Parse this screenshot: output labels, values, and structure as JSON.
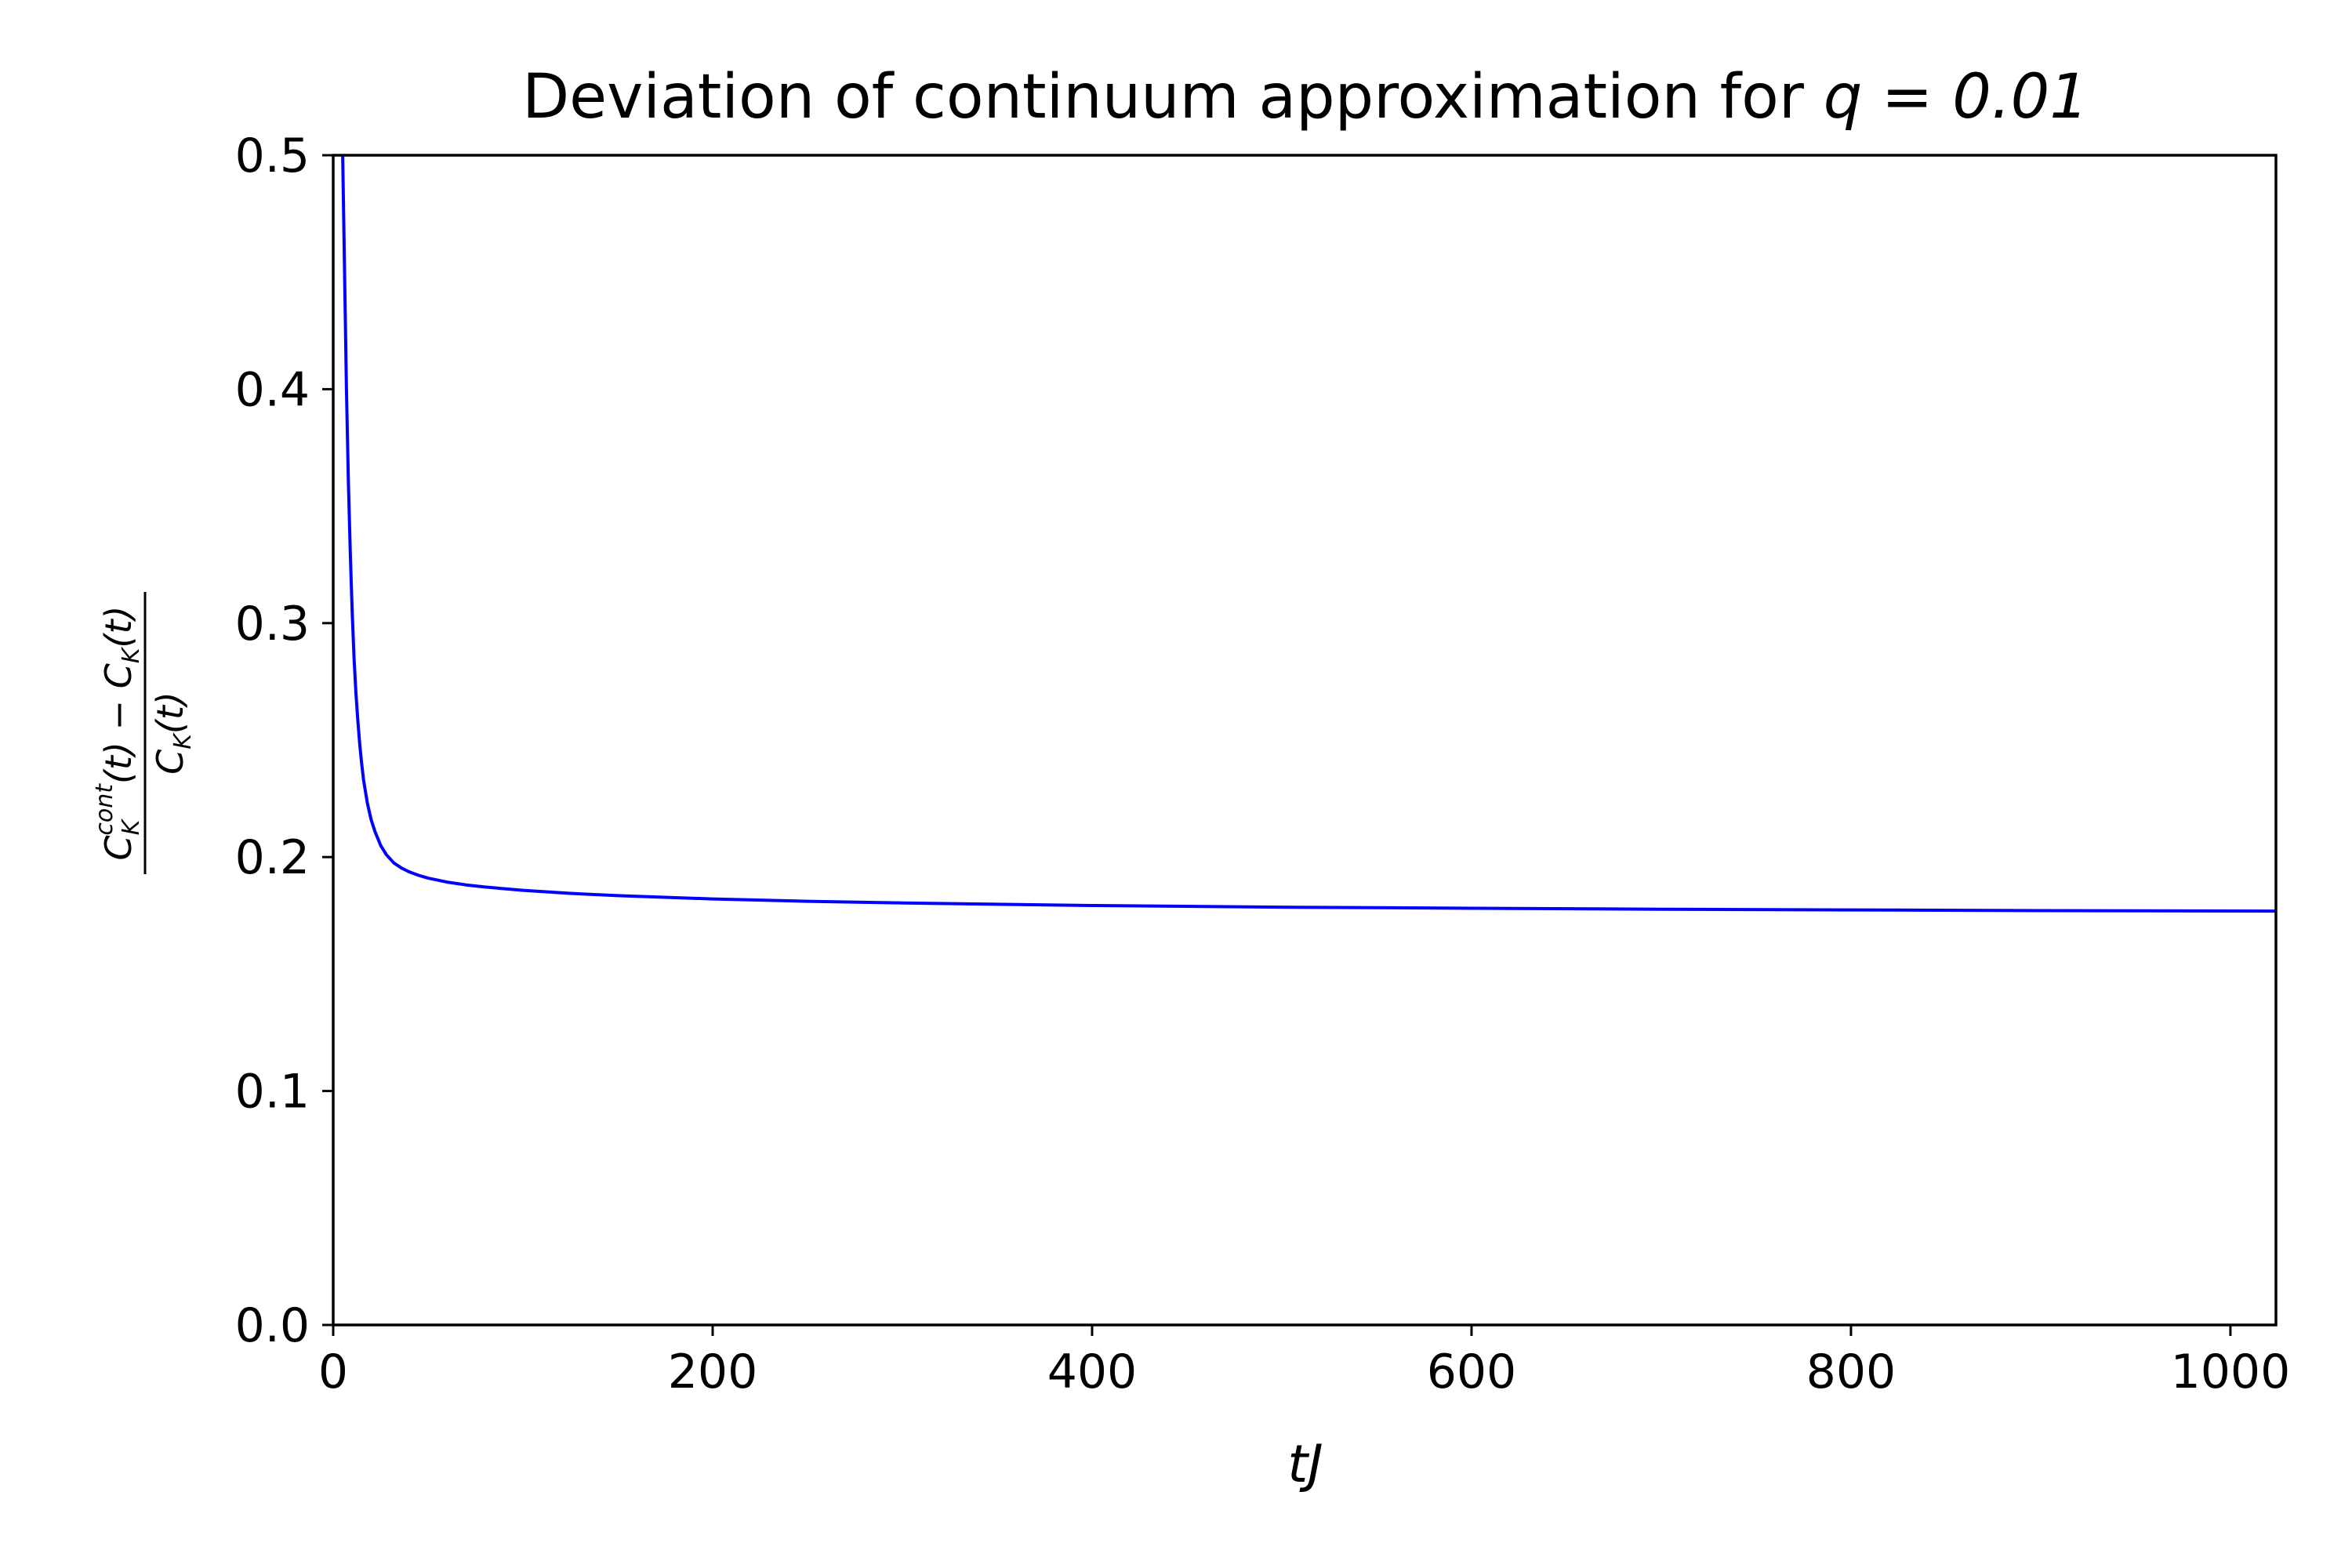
{
  "chart_data": {
    "type": "line",
    "title_main": "Deviation of continuum approximation for ",
    "title_math": "q = 0.01",
    "xlabel": "tJ",
    "ylabel": {
      "numerator_main": "C",
      "numerator_sup": "cont",
      "numerator_sub": "K",
      "numerator_rest": "(t) − C",
      "numerator_sub2": "K",
      "numerator_rest2": "(t)",
      "denominator_main": "C",
      "denominator_sub": "K",
      "denominator_rest": "(t)"
    },
    "xlim": [
      0,
      1024
    ],
    "ylim": [
      0.0,
      0.5
    ],
    "x_ticks": [
      0,
      200,
      400,
      600,
      800,
      1000
    ],
    "x_tick_labels": [
      "0",
      "200",
      "400",
      "600",
      "800",
      "1000"
    ],
    "y_ticks": [
      0.0,
      0.1,
      0.2,
      0.3,
      0.4,
      0.5
    ],
    "y_tick_labels": [
      "0.0",
      "0.1",
      "0.2",
      "0.3",
      "0.4",
      "0.5"
    ],
    "grid": false,
    "legend": "none",
    "series": [
      {
        "color": "#0000ff",
        "x": [
          5,
          6,
          7,
          8,
          9,
          10,
          11,
          12,
          13,
          14,
          15,
          16,
          18,
          20,
          22,
          25,
          28,
          32,
          36,
          40,
          45,
          50,
          60,
          70,
          80,
          100,
          125,
          150,
          200,
          250,
          300,
          400,
          500,
          600,
          700,
          800,
          900,
          1024
        ],
        "y": [
          0.5,
          0.45,
          0.4,
          0.36,
          0.33,
          0.305,
          0.285,
          0.27,
          0.258,
          0.248,
          0.24,
          0.233,
          0.223,
          0.216,
          0.211,
          0.205,
          0.201,
          0.1975,
          0.1953,
          0.1937,
          0.1922,
          0.191,
          0.1893,
          0.1881,
          0.1872,
          0.1858,
          0.1845,
          0.1835,
          0.1821,
          0.1811,
          0.1804,
          0.1793,
          0.1786,
          0.1781,
          0.1777,
          0.1774,
          0.1771,
          0.1769
        ]
      }
    ]
  }
}
